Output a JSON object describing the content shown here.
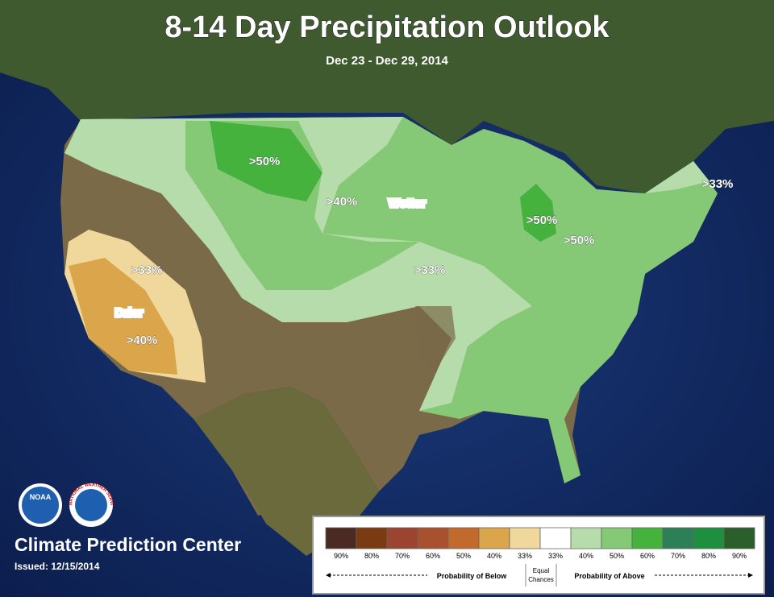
{
  "header": {
    "title": "8-14 Day Precipitation Outlook",
    "subtitle": "Dec 23 - Dec 29, 2014"
  },
  "map_labels": [
    {
      "text": ">50%"
    },
    {
      "text": ">40%"
    },
    {
      "text": "Wetter"
    },
    {
      "text": ">33%"
    },
    {
      "text": ">50%"
    },
    {
      "text": ">50%"
    },
    {
      "text": ">33%"
    },
    {
      "text": ">33%"
    },
    {
      "text": "Drier"
    },
    {
      "text": ">40%"
    }
  ],
  "footer": {
    "center": "Climate Prediction Center",
    "issued": "Issued: 12/15/2014"
  },
  "logos": {
    "noaa": "NOAA",
    "nws": "NATIONAL WEATHER SERVICE"
  },
  "legend": {
    "swatches": [
      {
        "label": "90%",
        "color": "#4a2a22"
      },
      {
        "label": "80%",
        "color": "#7b3b12"
      },
      {
        "label": "70%",
        "color": "#9b4430"
      },
      {
        "label": "60%",
        "color": "#a9502f"
      },
      {
        "label": "50%",
        "color": "#c26a2e"
      },
      {
        "label": "40%",
        "color": "#dba54b"
      },
      {
        "label": "33%",
        "color": "#f0d79c"
      },
      {
        "label": "33%",
        "color": "#ffffff"
      },
      {
        "label": "40%",
        "color": "#b5dcaa"
      },
      {
        "label": "50%",
        "color": "#85c876"
      },
      {
        "label": "60%",
        "color": "#44b23d"
      },
      {
        "label": "70%",
        "color": "#2c7f56"
      },
      {
        "label": "80%",
        "color": "#1e8f3f"
      },
      {
        "label": "90%",
        "color": "#2a5e2a"
      }
    ],
    "below": "Probability of Below",
    "equal": [
      "Equal",
      "Chances"
    ],
    "above": "Probability of Above"
  }
}
